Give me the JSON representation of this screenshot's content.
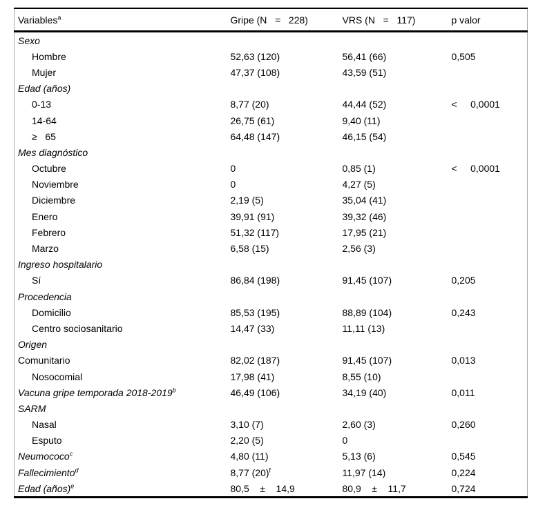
{
  "table": {
    "headers": [
      {
        "text": "Variables",
        "sup": "a"
      },
      {
        "text": "Gripe (N   =   228)",
        "sup": ""
      },
      {
        "text": "VRS (N   =   117)",
        "sup": ""
      },
      {
        "text": "p valor",
        "sup": ""
      }
    ],
    "rows": [
      {
        "style": "section",
        "label": "Sexo",
        "sup": "",
        "gripe": "",
        "gripe_sup": "",
        "vrs": "",
        "p": ""
      },
      {
        "style": "item",
        "label": "Hombre",
        "sup": "",
        "gripe": "52,63 (120)",
        "gripe_sup": "",
        "vrs": "56,41 (66)",
        "p": "0,505"
      },
      {
        "style": "item",
        "label": "Mujer",
        "sup": "",
        "gripe": "47,37 (108)",
        "gripe_sup": "",
        "vrs": "43,59 (51)",
        "p": ""
      },
      {
        "style": "section",
        "label": "Edad (años)",
        "sup": "",
        "gripe": "",
        "gripe_sup": "",
        "vrs": "",
        "p": ""
      },
      {
        "style": "item",
        "label": "0-13",
        "sup": "",
        "gripe": "8,77 (20)",
        "gripe_sup": "",
        "vrs": "44,44 (52)",
        "p": "<     0,0001"
      },
      {
        "style": "item",
        "label": "14-64",
        "sup": "",
        "gripe": "26,75 (61)",
        "gripe_sup": "",
        "vrs": "9,40 (11)",
        "p": ""
      },
      {
        "style": "item",
        "label": "≥   65",
        "sup": "",
        "gripe": "64,48 (147)",
        "gripe_sup": "",
        "vrs": "46,15 (54)",
        "p": ""
      },
      {
        "style": "section",
        "label": "Mes diagnóstico",
        "sup": "",
        "gripe": "",
        "gripe_sup": "",
        "vrs": "",
        "p": ""
      },
      {
        "style": "item",
        "label": "Octubre",
        "sup": "",
        "gripe": "0",
        "gripe_sup": "",
        "vrs": "0,85 (1)",
        "p": "<     0,0001"
      },
      {
        "style": "item",
        "label": "Noviembre",
        "sup": "",
        "gripe": "0",
        "gripe_sup": "",
        "vrs": "4,27 (5)",
        "p": ""
      },
      {
        "style": "item",
        "label": "Diciembre",
        "sup": "",
        "gripe": "2,19 (5)",
        "gripe_sup": "",
        "vrs": "35,04 (41)",
        "p": ""
      },
      {
        "style": "item",
        "label": "Enero",
        "sup": "",
        "gripe": "39,91 (91)",
        "gripe_sup": "",
        "vrs": "39,32 (46)",
        "p": ""
      },
      {
        "style": "item",
        "label": "Febrero",
        "sup": "",
        "gripe": "51,32 (117)",
        "gripe_sup": "",
        "vrs": "17,95 (21)",
        "p": ""
      },
      {
        "style": "item",
        "label": "Marzo",
        "sup": "",
        "gripe": "6,58 (15)",
        "gripe_sup": "",
        "vrs": "2,56 (3)",
        "p": ""
      },
      {
        "style": "section",
        "label": "Ingreso hospitalario",
        "sup": "",
        "gripe": "",
        "gripe_sup": "",
        "vrs": "",
        "p": ""
      },
      {
        "style": "item",
        "label": "Sí",
        "sup": "",
        "gripe": "86,84 (198)",
        "gripe_sup": "",
        "vrs": "91,45 (107)",
        "p": "0,205"
      },
      {
        "style": "section",
        "label": "Procedencia",
        "sup": "",
        "gripe": "",
        "gripe_sup": "",
        "vrs": "",
        "p": ""
      },
      {
        "style": "item",
        "label": "Domicilio",
        "sup": "",
        "gripe": "85,53 (195)",
        "gripe_sup": "",
        "vrs": "88,89 (104)",
        "p": "0,243"
      },
      {
        "style": "item",
        "label": "Centro sociosanitario",
        "sup": "",
        "gripe": "14,47 (33)",
        "gripe_sup": "",
        "vrs": "11,11 (13)",
        "p": ""
      },
      {
        "style": "section",
        "label": "Origen",
        "sup": "",
        "gripe": "",
        "gripe_sup": "",
        "vrs": "",
        "p": ""
      },
      {
        "style": "flush",
        "label": "Comunitario",
        "sup": "",
        "gripe": "82,02 (187)",
        "gripe_sup": "",
        "vrs": "91,45 (107)",
        "p": "0,013"
      },
      {
        "style": "item",
        "label": "Nosocomial",
        "sup": "",
        "gripe": "17,98 (41)",
        "gripe_sup": "",
        "vrs": "8,55 (10)",
        "p": ""
      },
      {
        "style": "section",
        "label": "Vacuna gripe temporada 2018-2019",
        "sup": "b",
        "gripe": "46,49 (106)",
        "gripe_sup": "",
        "vrs": "34,19 (40)",
        "p": "0,011"
      },
      {
        "style": "section",
        "label": "SARM",
        "sup": "",
        "gripe": "",
        "gripe_sup": "",
        "vrs": "",
        "p": ""
      },
      {
        "style": "item",
        "label": "Nasal",
        "sup": "",
        "gripe": "3,10 (7)",
        "gripe_sup": "",
        "vrs": "2,60 (3)",
        "p": "0,260"
      },
      {
        "style": "item",
        "label": "Esputo",
        "sup": "",
        "gripe": "2,20 (5)",
        "gripe_sup": "",
        "vrs": "0",
        "p": ""
      },
      {
        "style": "section",
        "label": "Neumococo",
        "sup": "c",
        "gripe": "4,80 (11)",
        "gripe_sup": "",
        "vrs": "5,13 (6)",
        "p": "0,545"
      },
      {
        "style": "section",
        "label": "Fallecimiento",
        "sup": "d",
        "gripe": "8,77 (20)",
        "gripe_sup": "f",
        "vrs": "11,97 (14)",
        "p": "0,224"
      },
      {
        "style": "section",
        "label": "Edad (años)",
        "sup": "e",
        "gripe": "80,5    ±    14,9",
        "gripe_sup": "",
        "vrs": "80,9    ±    11,7",
        "p": "0,724"
      }
    ]
  },
  "colors": {
    "text": "#000000",
    "rule_strong": "#000000",
    "rule_side": "#a8a8a8",
    "background": "#ffffff"
  }
}
